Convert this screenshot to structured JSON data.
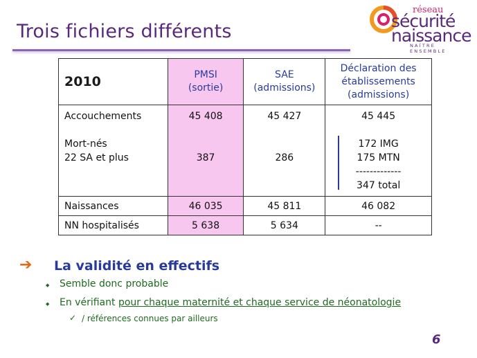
{
  "slide": {
    "title": "Trois fichiers différents",
    "page_number": "6"
  },
  "logo": {
    "reseau": "réseau",
    "line1": "sécurité",
    "line2": "naissance",
    "tagline": "NAÎTRE ENSEMBLE"
  },
  "table": {
    "year": "2010",
    "columns": [
      {
        "line1": "PMSI",
        "line2": "(sortie)"
      },
      {
        "line1": "SAE",
        "line2": "(admissions)"
      },
      {
        "line1": "Déclaration des",
        "line2": "établissements",
        "line3": "(admissions)"
      }
    ],
    "row_main": {
      "label1": "Accouchements",
      "label2": "Mort-nés",
      "label3": "22 SA et plus",
      "pmsi_acc": "45 408",
      "pmsi_mn": "387",
      "sae_acc": "45 427",
      "sae_mn": "286",
      "decl_acc": "45 445",
      "decl_img": "172 IMG",
      "decl_mtn": "175 MTN",
      "decl_sep": "-------------",
      "decl_total": "347 total"
    },
    "row_naissances": {
      "label": "Naissances",
      "pmsi": "46 035",
      "sae": "45 811",
      "decl": "46 082"
    },
    "row_nn": {
      "label": "NN hospitalisés",
      "pmsi": "5 638",
      "sae": "5 634",
      "decl": "--"
    }
  },
  "bullets": {
    "heading": "La validité en effectifs",
    "item1": "Semble donc probable",
    "item2_prefix": "En vérifiant ",
    "item2_underlined": "pour chaque maternité et chaque service de néonatologie",
    "sub1": "/ références connues par ailleurs"
  }
}
